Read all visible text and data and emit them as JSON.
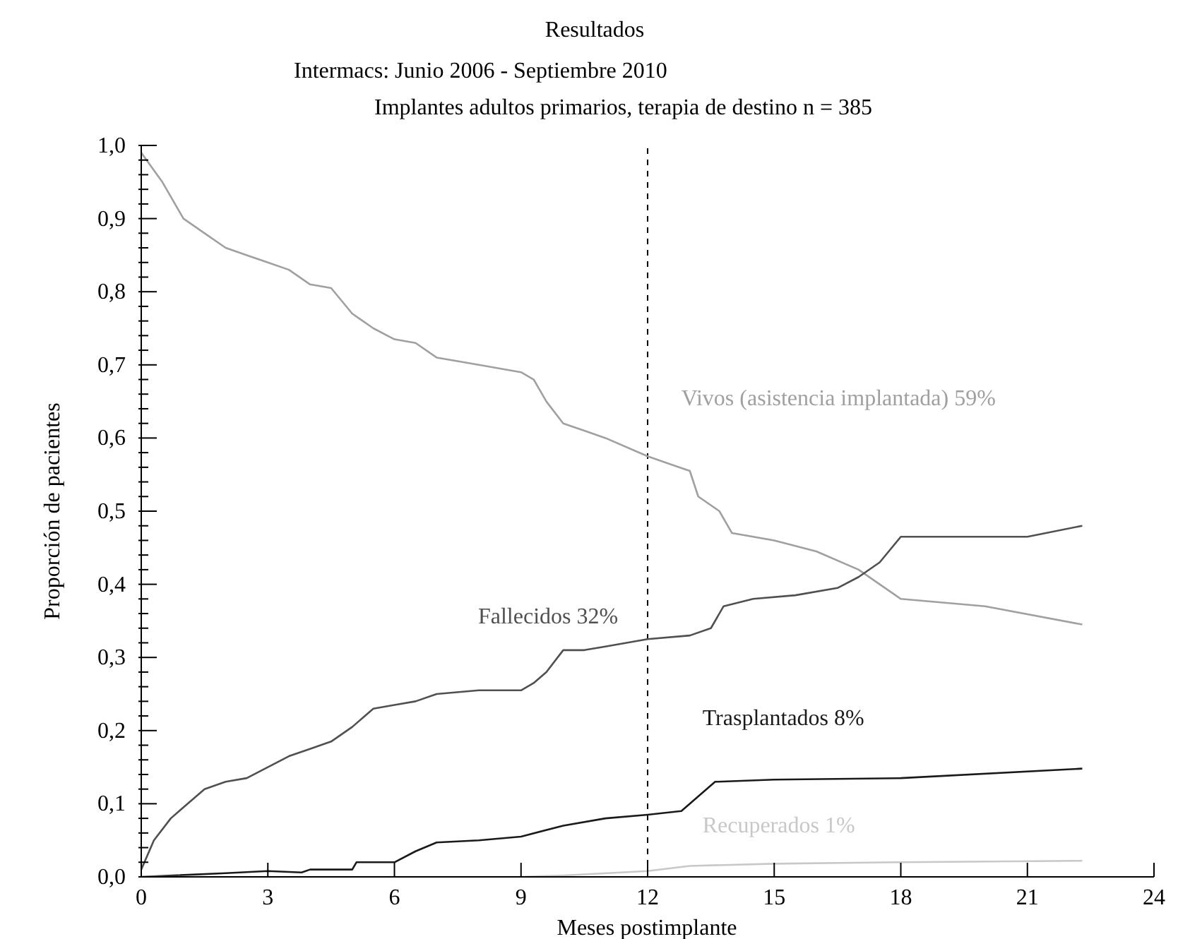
{
  "chart_data": {
    "type": "line",
    "title": "Resultados",
    "subtitle": "Intermacs: Junio 2006 - Septiembre 2010",
    "annotations": [
      "Implantes adultos primarios, terapia de destino n = 385"
    ],
    "xlabel": "Meses postimplante",
    "ylabel": "Proporción de pacientes",
    "xlim": [
      0,
      24
    ],
    "xticks": [
      0,
      3,
      6,
      9,
      12,
      15,
      18,
      21,
      24
    ],
    "ylim": [
      0,
      1
    ],
    "yticks": [
      {
        "value": 0,
        "label": "0,0"
      },
      {
        "value": 0.02,
        "label": null
      },
      {
        "value": 0.04,
        "label": null
      },
      {
        "value": 0.06,
        "label": null
      },
      {
        "value": 0.08,
        "label": null
      },
      {
        "value": 0.1,
        "label": "0,1"
      },
      {
        "value": 0.12,
        "label": null
      },
      {
        "value": 0.14,
        "label": null
      },
      {
        "value": 0.16,
        "label": null
      },
      {
        "value": 0.18,
        "label": null
      },
      {
        "value": 0.2,
        "label": "0,2"
      },
      {
        "value": 0.22,
        "label": null
      },
      {
        "value": 0.24,
        "label": null
      },
      {
        "value": 0.26,
        "label": null
      },
      {
        "value": 0.28,
        "label": null
      },
      {
        "value": 0.3,
        "label": "0,3"
      },
      {
        "value": 0.32,
        "label": null
      },
      {
        "value": 0.34,
        "label": null
      },
      {
        "value": 0.36,
        "label": null
      },
      {
        "value": 0.38,
        "label": null
      },
      {
        "value": 0.4,
        "label": "0,4"
      },
      {
        "value": 0.42,
        "label": null
      },
      {
        "value": 0.44,
        "label": null
      },
      {
        "value": 0.46,
        "label": null
      },
      {
        "value": 0.48,
        "label": null
      },
      {
        "value": 0.5,
        "label": "0,5"
      },
      {
        "value": 0.52,
        "label": null
      },
      {
        "value": 0.54,
        "label": null
      },
      {
        "value": 0.56,
        "label": null
      },
      {
        "value": 0.58,
        "label": null
      },
      {
        "value": 0.6,
        "label": "0,6"
      },
      {
        "value": 0.62,
        "label": null
      },
      {
        "value": 0.64,
        "label": null
      },
      {
        "value": 0.66,
        "label": null
      },
      {
        "value": 0.68,
        "label": null
      },
      {
        "value": 0.7,
        "label": "0,7"
      },
      {
        "value": 0.72,
        "label": null
      },
      {
        "value": 0.74,
        "label": null
      },
      {
        "value": 0.76,
        "label": null
      },
      {
        "value": 0.78,
        "label": null
      },
      {
        "value": 0.8,
        "label": "0,8"
      },
      {
        "value": 0.82,
        "label": null
      },
      {
        "value": 0.84,
        "label": null
      },
      {
        "value": 0.86,
        "label": null
      },
      {
        "value": 0.88,
        "label": null
      },
      {
        "value": 0.9,
        "label": "0,9"
      },
      {
        "value": 0.92,
        "label": null
      },
      {
        "value": 0.94,
        "label": null
      },
      {
        "value": 0.96,
        "label": null
      },
      {
        "value": 0.98,
        "label": null
      },
      {
        "value": 1,
        "label": "1,0"
      }
    ],
    "grid": false,
    "legend": false,
    "marker": "none",
    "line_style": "solid",
    "ref_lines": [
      {
        "axis": "x",
        "value": 12,
        "color": "#000000",
        "line_style": "dashed"
      }
    ],
    "series": [
      {
        "name": "Vivos (asistencia implantada) 59%",
        "color": "#a0a0a0",
        "x": [
          0,
          0.5,
          1,
          1.5,
          2,
          2.5,
          3,
          3.5,
          4,
          4.5,
          5,
          5.5,
          6,
          6.5,
          7,
          8,
          9,
          9.3,
          9.6,
          10,
          10.5,
          11,
          12,
          12.5,
          13,
          13.2,
          13.7,
          14,
          15,
          16,
          17,
          17.5,
          18,
          20,
          22.3
        ],
        "values": [
          0.99,
          0.95,
          0.9,
          0.88,
          0.86,
          0.85,
          0.84,
          0.83,
          0.81,
          0.805,
          0.77,
          0.75,
          0.735,
          0.73,
          0.71,
          0.7,
          0.69,
          0.68,
          0.65,
          0.62,
          0.61,
          0.6,
          0.575,
          0.565,
          0.555,
          0.52,
          0.5,
          0.47,
          0.46,
          0.445,
          0.42,
          0.4,
          0.38,
          0.37,
          0.345
        ]
      },
      {
        "name": "Fallecidos 32%",
        "color": "#505050",
        "x": [
          0,
          0.3,
          0.7,
          1,
          1.5,
          2,
          2.5,
          3,
          3.5,
          4,
          4.5,
          5,
          5.5,
          6,
          6.5,
          7,
          8,
          9,
          9.3,
          9.6,
          10,
          10.5,
          11,
          12,
          13,
          13.5,
          13.8,
          14.5,
          15.5,
          16.5,
          17,
          17.5,
          18,
          20,
          21,
          22.3
        ],
        "values": [
          0.01,
          0.05,
          0.08,
          0.095,
          0.12,
          0.13,
          0.135,
          0.15,
          0.165,
          0.175,
          0.185,
          0.205,
          0.23,
          0.235,
          0.24,
          0.25,
          0.255,
          0.255,
          0.265,
          0.28,
          0.31,
          0.31,
          0.315,
          0.325,
          0.33,
          0.34,
          0.37,
          0.38,
          0.385,
          0.395,
          0.41,
          0.43,
          0.465,
          0.465,
          0.465,
          0.48
        ]
      },
      {
        "name": "Trasplantados 8%",
        "color": "#1a1a1a",
        "x": [
          0,
          2,
          3,
          3.8,
          4,
          5,
          5.1,
          6,
          6.5,
          7,
          8,
          9,
          10,
          11,
          12,
          12.8,
          13.2,
          13.6,
          15,
          18,
          22.3
        ],
        "values": [
          0,
          0.005,
          0.008,
          0.006,
          0.01,
          0.01,
          0.02,
          0.02,
          0.035,
          0.047,
          0.05,
          0.055,
          0.07,
          0.08,
          0.085,
          0.09,
          0.11,
          0.13,
          0.133,
          0.135,
          0.148
        ]
      },
      {
        "name": "Recuperados 1%",
        "color": "#c8c8c8",
        "x": [
          0,
          9,
          10,
          12,
          13,
          15,
          18,
          22.3
        ],
        "values": [
          0,
          0,
          0.002,
          0.008,
          0.015,
          0.018,
          0.02,
          0.022
        ]
      }
    ]
  }
}
